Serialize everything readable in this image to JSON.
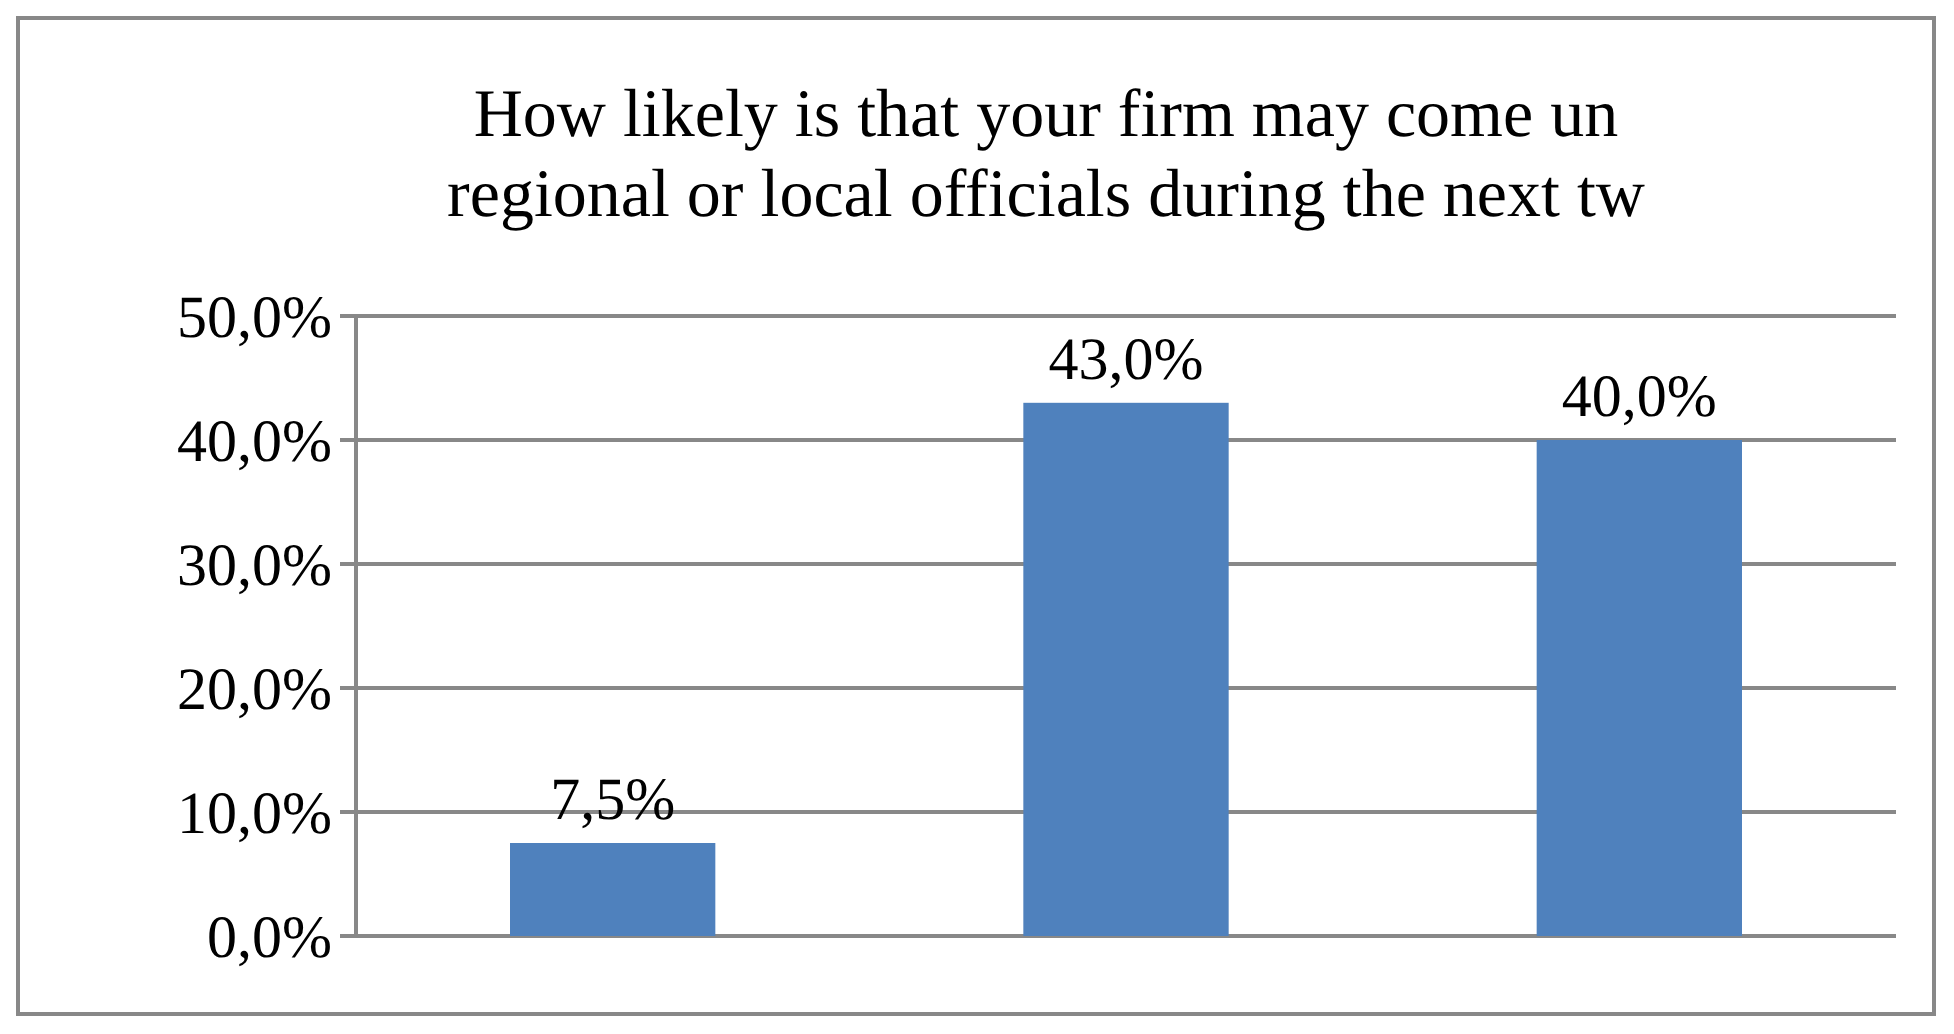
{
  "chart_data": {
    "type": "bar",
    "title": "How likely is that your firm may come un\nregional or local officials during the next tw",
    "categories": [
      null,
      null,
      null
    ],
    "values": [
      7.5,
      43.0,
      40.0
    ],
    "value_labels": [
      "7,5%",
      "43,0%",
      "40,0%"
    ],
    "color": "#4f81bd",
    "ylim": [
      0,
      50
    ],
    "yticks": [
      {
        "value": 0,
        "label": "0,0%"
      },
      {
        "value": 10,
        "label": "10,0%"
      },
      {
        "value": 20,
        "label": "20,0%"
      },
      {
        "value": 30,
        "label": "30,0%"
      },
      {
        "value": 40,
        "label": "40,0%"
      },
      {
        "value": 50,
        "label": "50,0%"
      }
    ],
    "grid": "y"
  }
}
